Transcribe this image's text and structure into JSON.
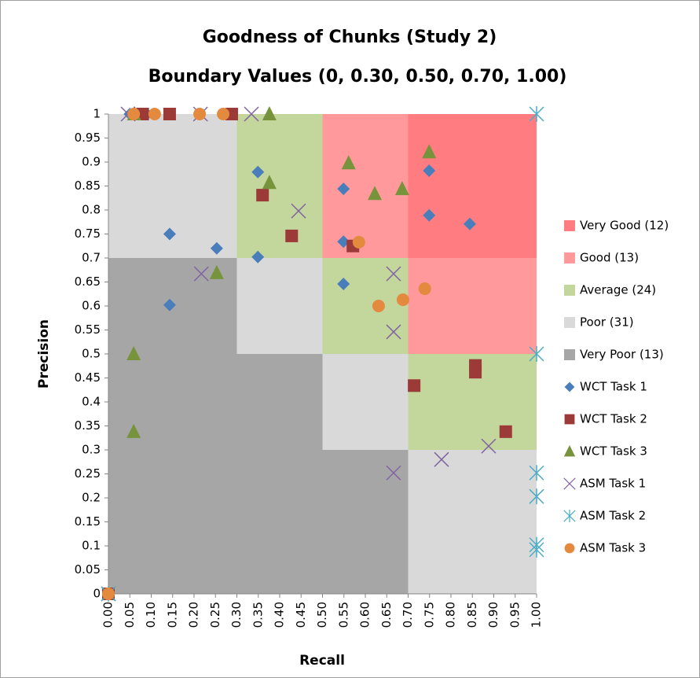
{
  "chart_data": {
    "type": "scatter",
    "title": "Goodness of Chunks (Study 2)",
    "subtitle": "Boundary Values (0, 0.30, 0.50, 0.70, 1.00)",
    "x_label": "Recall",
    "y_label": "Precision",
    "xlim": [
      0,
      1
    ],
    "ylim": [
      0,
      1
    ],
    "xticks": [
      {
        "value": 0,
        "label": "0.00"
      },
      {
        "value": 0.05,
        "label": "0.05"
      },
      {
        "value": 0.1,
        "label": "0.10"
      },
      {
        "value": 0.15,
        "label": "0.15"
      },
      {
        "value": 0.2,
        "label": "0.20"
      },
      {
        "value": 0.25,
        "label": "0.25"
      },
      {
        "value": 0.3,
        "label": "0.30"
      },
      {
        "value": 0.35,
        "label": "0.35"
      },
      {
        "value": 0.4,
        "label": "0.40"
      },
      {
        "value": 0.45,
        "label": "0.45"
      },
      {
        "value": 0.5,
        "label": "0.50"
      },
      {
        "value": 0.55,
        "label": "0.55"
      },
      {
        "value": 0.6,
        "label": "0.60"
      },
      {
        "value": 0.65,
        "label": "0.65"
      },
      {
        "value": 0.7,
        "label": "0.70"
      },
      {
        "value": 0.75,
        "label": "0.75"
      },
      {
        "value": 0.8,
        "label": "0.80"
      },
      {
        "value": 0.85,
        "label": "0.85"
      },
      {
        "value": 0.9,
        "label": "0.90"
      },
      {
        "value": 0.95,
        "label": "0.95"
      },
      {
        "value": 1,
        "label": "1.00"
      }
    ],
    "yticks": [
      0,
      0.05,
      0.1,
      0.15,
      0.2,
      0.25,
      0.3,
      0.35,
      0.4,
      0.45,
      0.5,
      0.55,
      0.6,
      0.65,
      0.7,
      0.75,
      0.8,
      0.85,
      0.9,
      0.95,
      1
    ],
    "boundaries": [
      0,
      0.3,
      0.5,
      0.7,
      1
    ],
    "regions": [
      {
        "name": "Very Good (12)",
        "color": "#ff7c80"
      },
      {
        "name": "Good (13)",
        "color": "#ff999b"
      },
      {
        "name": "Average (24)",
        "color": "#c3d69b"
      },
      {
        "name": "Poor (31)",
        "color": "#d9d9d9"
      },
      {
        "name": "Very Poor (13)",
        "color": "#a6a6a6"
      }
    ],
    "series": [
      {
        "name": "WCT Task 1",
        "color": "#4a7ebb",
        "marker": "diamond",
        "x": [
          0.05,
          0.09,
          0.143,
          0.143,
          0.253,
          0.349,
          0.349,
          0.549,
          0.549,
          0.549,
          0.749,
          0.749,
          0.844,
          0
        ],
        "y": [
          1,
          1,
          0.75,
          0.602,
          0.72,
          0.879,
          0.702,
          0.844,
          0.734,
          0.646,
          0.882,
          0.789,
          0.771,
          0
        ]
      },
      {
        "name": "WCT Task 2",
        "color": "#9b3a37",
        "marker": "square",
        "x": [
          0.08,
          0.143,
          0.288,
          0.36,
          0.428,
          0.571,
          0.714,
          0.857,
          0.857,
          0.928,
          0
        ],
        "y": [
          1,
          1,
          1,
          0.831,
          0.746,
          0.725,
          0.434,
          0.476,
          0.462,
          0.338,
          0
        ]
      },
      {
        "name": "WCT Task 3",
        "color": "#77933c",
        "marker": "triangle",
        "x": [
          0.06,
          0.376,
          0.749,
          0.561,
          0.376,
          0.622,
          0.686,
          0.253,
          0.059,
          0.059
        ],
        "y": [
          1,
          1,
          0.921,
          0.898,
          0.857,
          0.834,
          0.844,
          0.669,
          0.5,
          0.338
        ]
      },
      {
        "name": "ASM Task 1",
        "color": "#8064a2",
        "marker": "x",
        "x": [
          0.046,
          0.215,
          0.334,
          0.444,
          0.217,
          0.666,
          0.666,
          0.666,
          0.778,
          0.888,
          0
        ],
        "y": [
          1,
          1,
          1,
          0.798,
          0.667,
          0.667,
          0.546,
          0.252,
          0.28,
          0.308,
          0
        ]
      },
      {
        "name": "ASM Task 2",
        "color": "#4bacc6",
        "marker": "star",
        "x": [
          1,
          1,
          1,
          1,
          1,
          1,
          0
        ],
        "y": [
          1,
          0.5,
          0.252,
          0.203,
          0.102,
          0.092,
          0
        ]
      },
      {
        "name": "ASM Task 3",
        "color": "#e38a3e",
        "marker": "circle",
        "x": [
          0.059,
          0.108,
          0.213,
          0.268,
          0.585,
          0.631,
          0.688,
          0.739,
          0
        ],
        "y": [
          1,
          1,
          1,
          1,
          0.733,
          0.6,
          0.613,
          0.636,
          0
        ]
      }
    ]
  }
}
